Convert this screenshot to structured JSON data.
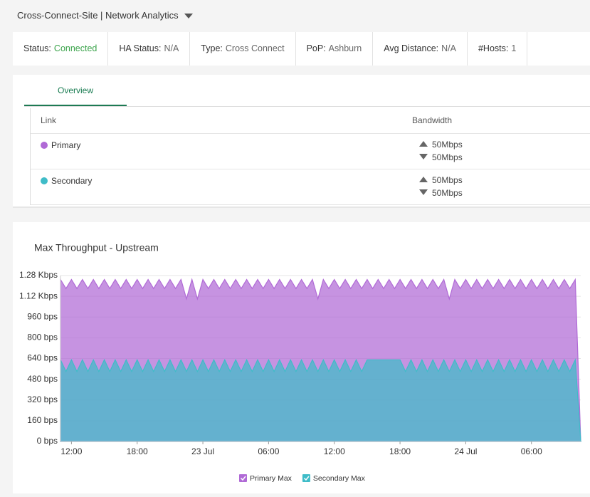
{
  "header": {
    "title": "Cross-Connect-Site | Network Analytics"
  },
  "status": [
    {
      "label": "Status:",
      "value": "Connected"
    },
    {
      "label": "HA Status:",
      "value": "N/A"
    },
    {
      "label": "Type:",
      "value": "Cross Connect"
    },
    {
      "label": "PoP:",
      "value": "Ashburn"
    },
    {
      "label": "Avg Distance:",
      "value": "N/A"
    },
    {
      "label": "#Hosts:",
      "value": "1"
    }
  ],
  "tabs": [
    "Overview"
  ],
  "table": {
    "columns": [
      "Link",
      "Bandwidth"
    ],
    "rows": [
      {
        "name": "Primary",
        "up": "50Mbps",
        "down": "50Mbps"
      },
      {
        "name": "Secondary",
        "up": "50Mbps",
        "down": "50Mbps"
      }
    ]
  },
  "chart_data": {
    "type": "area",
    "title": "Max Throughput - Upstream",
    "categories": [
      null,
      null,
      "12:00",
      null,
      null,
      null,
      null,
      null,
      null,
      null,
      null,
      null,
      null,
      null,
      "18:00",
      null,
      null,
      null,
      null,
      null,
      null,
      null,
      null,
      null,
      null,
      null,
      "23 Jul",
      null,
      null,
      null,
      null,
      null,
      null,
      null,
      null,
      null,
      null,
      null,
      "06:00",
      null,
      null,
      null,
      null,
      null,
      null,
      null,
      null,
      null,
      null,
      null,
      "12:00",
      null,
      null,
      null,
      null,
      null,
      null,
      null,
      null,
      null,
      null,
      null,
      "18:00",
      null,
      null,
      null,
      null,
      null,
      null,
      null,
      null,
      null,
      null,
      null,
      "24 Jul",
      null,
      null,
      null,
      null,
      null,
      null,
      null,
      null,
      null,
      null,
      null,
      "06:00",
      null,
      null,
      null,
      null,
      null,
      null,
      null,
      null,
      null
    ],
    "series": [
      {
        "name": "Primary Max",
        "color": "#b06ad6",
        "values": [
          1250,
          1180,
          1250,
          1180,
          1250,
          1180,
          1250,
          1180,
          1250,
          1180,
          1250,
          1180,
          1250,
          1180,
          1250,
          1180,
          1250,
          1180,
          1250,
          1180,
          1250,
          1180,
          1250,
          1100,
          1250,
          1100,
          1250,
          1180,
          1250,
          1180,
          1250,
          1180,
          1250,
          1180,
          1250,
          1180,
          1250,
          1180,
          1250,
          1180,
          1250,
          1180,
          1250,
          1180,
          1250,
          1180,
          1250,
          1100,
          1250,
          1180,
          1250,
          1180,
          1250,
          1180,
          1250,
          1180,
          1250,
          1180,
          1250,
          1180,
          1250,
          1180,
          1250,
          1180,
          1250,
          1180,
          1250,
          1180,
          1250,
          1180,
          1250,
          1100,
          1250,
          1180,
          1250,
          1180,
          1250,
          1180,
          1250,
          1180,
          1250,
          1180,
          1250,
          1180,
          1250,
          1180,
          1250,
          1180,
          1250,
          1180,
          1250,
          1180,
          1250,
          1180,
          1250,
          0
        ]
      },
      {
        "name": "Secondary Max",
        "color": "#3fbcc8",
        "values": [
          630,
          540,
          630,
          540,
          630,
          540,
          630,
          540,
          630,
          540,
          630,
          540,
          630,
          540,
          630,
          540,
          630,
          540,
          630,
          540,
          630,
          540,
          630,
          540,
          630,
          540,
          630,
          540,
          630,
          540,
          630,
          540,
          630,
          540,
          630,
          540,
          630,
          540,
          630,
          540,
          630,
          540,
          630,
          540,
          630,
          540,
          630,
          540,
          630,
          540,
          630,
          540,
          630,
          540,
          630,
          540,
          630,
          630,
          630,
          630,
          630,
          630,
          630,
          540,
          630,
          540,
          630,
          540,
          630,
          540,
          630,
          540,
          630,
          540,
          630,
          540,
          630,
          540,
          630,
          540,
          630,
          540,
          630,
          540,
          630,
          540,
          630,
          540,
          630,
          540,
          630,
          540,
          630,
          540,
          630,
          0
        ]
      }
    ],
    "ylim": [
      0,
      1280
    ],
    "yticks": [
      {
        "value": 0,
        "label": "0 bps"
      },
      {
        "value": 160,
        "label": "160 bps"
      },
      {
        "value": 320,
        "label": "320 bps"
      },
      {
        "value": 480,
        "label": "480 bps"
      },
      {
        "value": 640,
        "label": "640 bps"
      },
      {
        "value": 800,
        "label": "800 bps"
      },
      {
        "value": 960,
        "label": "960 bps"
      },
      {
        "value": 1120,
        "label": "1.12 Kbps"
      },
      {
        "value": 1280,
        "label": "1.28 Kbps"
      }
    ],
    "grid": true
  }
}
